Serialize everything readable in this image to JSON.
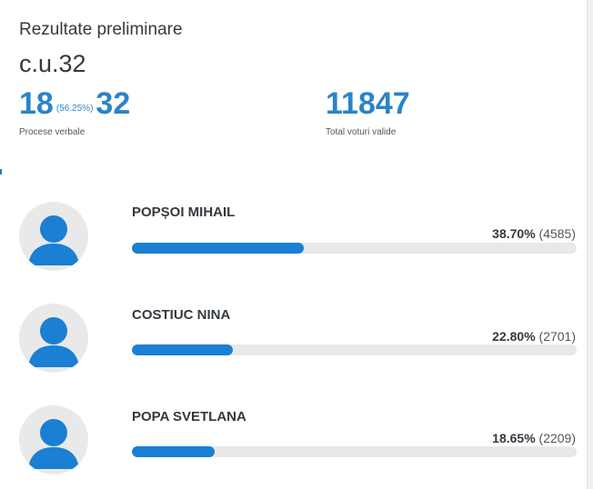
{
  "header": {
    "title": "Rezultate preliminare",
    "district": "c.u.32"
  },
  "stats": {
    "processed": "18",
    "processed_pct": "(56.25%)",
    "total_procese": "32",
    "procese_label": "Procese verbale",
    "total_votes": "11847",
    "votes_label": "Total voturi valide"
  },
  "candidates": [
    {
      "name": "POPȘOI MIHAIL",
      "percent_text": "38.70%",
      "votes_text": "(4585)",
      "share": 38.7,
      "bar_percent": 38.7
    },
    {
      "name": "COSTIUC NINA",
      "percent_text": "22.80%",
      "votes_text": "(2701)",
      "share": 22.8,
      "bar_percent": 22.8
    },
    {
      "name": "POPA SVETLANA",
      "percent_text": "18.65%",
      "votes_text": "(2209)",
      "share": 18.65,
      "bar_percent": 18.65
    }
  ],
  "colors": {
    "accent": "#2b84c6",
    "bar": "#1b7fd3",
    "avatar_figure": "#1b7fd3",
    "avatar_bg": "#e9e9e9",
    "track": "#e8e8e8"
  },
  "icons": {
    "avatar": "person-silhouette-icon"
  }
}
